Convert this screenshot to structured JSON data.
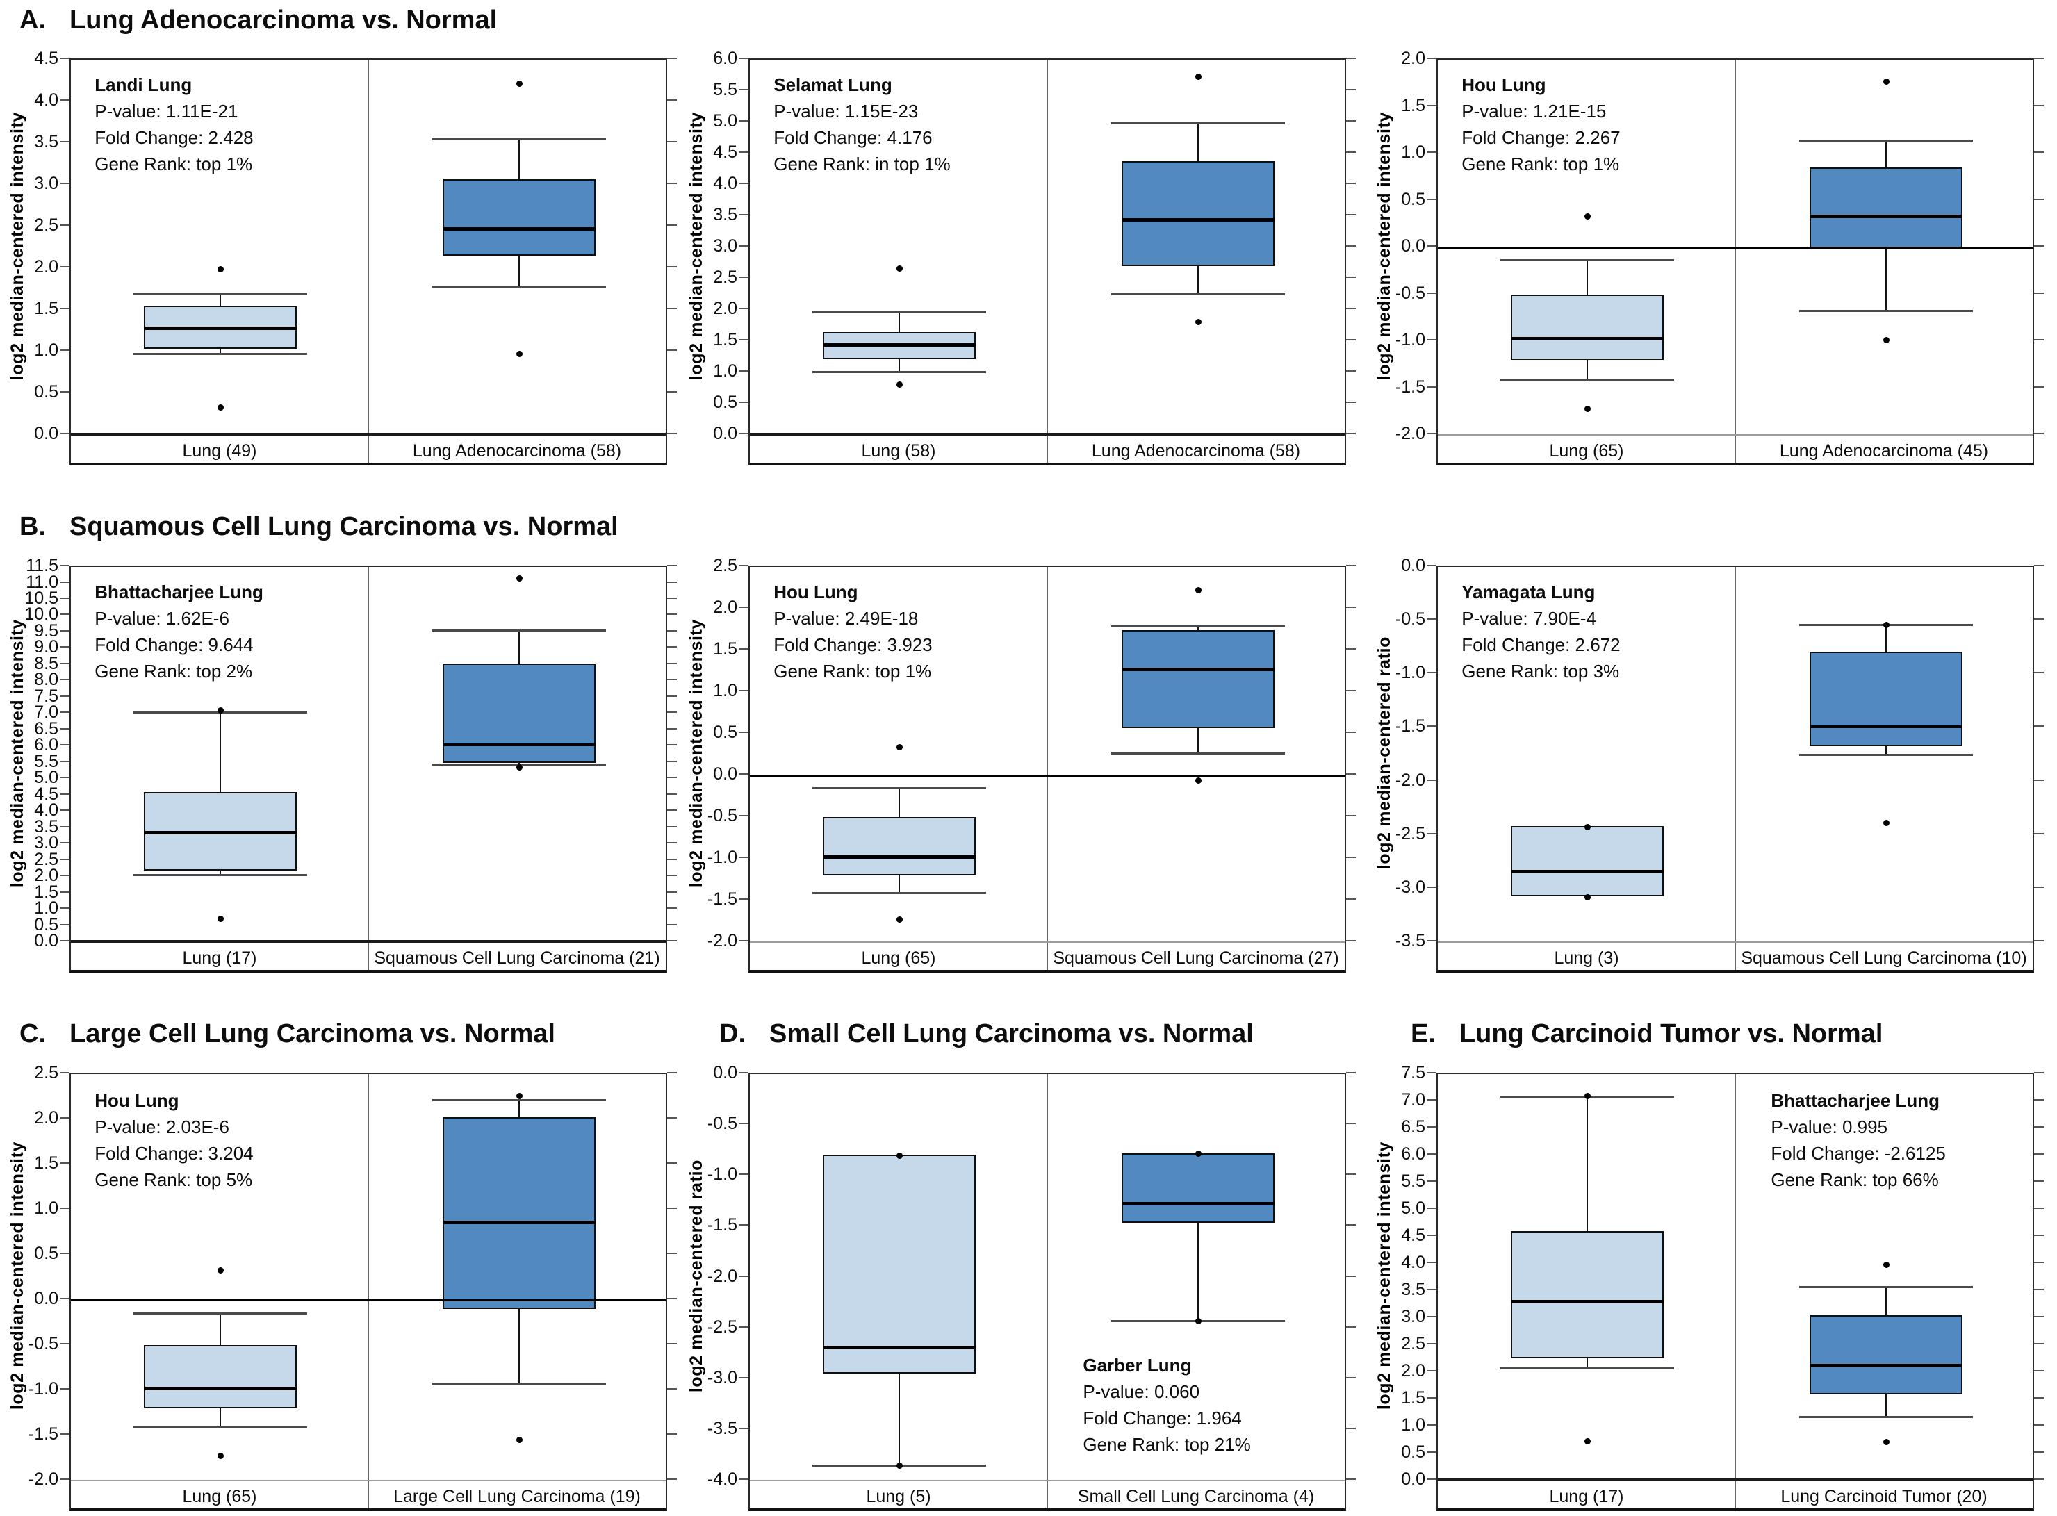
{
  "figure": {
    "sections": [
      {
        "letter": "A.",
        "title": "Lung Adenocarcinoma vs. Normal"
      },
      {
        "letter": "B.",
        "title": "Squamous Cell Lung Carcinoma vs. Normal"
      },
      {
        "letter": "C.",
        "title": "Large Cell Lung Carcinoma vs. Normal"
      },
      {
        "letter": "D.",
        "title": "Small Cell Lung Carcinoma vs. Normal"
      },
      {
        "letter": "E.",
        "title": "Lung Carcinoid Tumor vs. Normal"
      }
    ]
  },
  "colors": {
    "normal_box": "#c6d9ea",
    "tumor_box": "#5289c0",
    "box_border": "#101010",
    "median_line": "#000000",
    "whisker": "#141414",
    "cap": "#4a4a4a",
    "zero_line": "#000000",
    "baseline_gray": "#9c9c9c",
    "baseline_dark": "#1b1b1b",
    "divider": "#666666",
    "tick": "#555555"
  },
  "chart_data": [
    {
      "id": "a1",
      "type": "box",
      "section": "A",
      "grid": {
        "row": 0,
        "col": 0
      },
      "study": "Landi Lung",
      "p_value": "P-value: 1.11E-21",
      "fold_change": "Fold Change: 2.428",
      "gene_rank": "Gene Rank: top 1%",
      "stats_pos": "top-left",
      "ylabel": "log2 median-centered intensity",
      "axis": {
        "ymin": 0.0,
        "ymax": 4.5,
        "step": 0.5
      },
      "zero_line": false,
      "baseline_dark": true,
      "categories": [
        "Lung (49)",
        "Lung Adenocarcinoma (58)"
      ],
      "series": [
        {
          "name": "Lung (49)",
          "role": "normal",
          "q1": 1.03,
          "median": 1.28,
          "q3": 1.55,
          "whisker_low": 0.97,
          "whisker_high": 1.7,
          "outliers": [
            1.99,
            0.33
          ]
        },
        {
          "name": "Lung Adenocarcinoma (58)",
          "role": "tumor",
          "q1": 2.15,
          "median": 2.47,
          "q3": 3.07,
          "whisker_low": 1.78,
          "whisker_high": 3.55,
          "outliers": [
            4.21,
            0.97
          ]
        }
      ]
    },
    {
      "id": "a2",
      "type": "box",
      "section": "A",
      "grid": {
        "row": 0,
        "col": 1
      },
      "study": "Selamat Lung",
      "p_value": "P-value: 1.15E-23",
      "fold_change": "Fold Change: 4.176",
      "gene_rank": "Gene Rank: in top 1%",
      "stats_pos": "top-left",
      "ylabel": "log2 median-centered intensity",
      "axis": {
        "ymin": 0.0,
        "ymax": 6.0,
        "step": 0.5
      },
      "zero_line": false,
      "baseline_dark": true,
      "categories": [
        "Lung (58)",
        "Lung Adenocarcinoma (58)"
      ],
      "series": [
        {
          "name": "Lung (58)",
          "role": "normal",
          "q1": 1.21,
          "median": 1.44,
          "q3": 1.64,
          "whisker_low": 1.01,
          "whisker_high": 1.96,
          "outliers": [
            2.66,
            0.81
          ]
        },
        {
          "name": "Lung Adenocarcinoma (58)",
          "role": "tumor",
          "q1": 2.7,
          "median": 3.44,
          "q3": 4.38,
          "whisker_low": 2.25,
          "whisker_high": 4.98,
          "outliers": [
            5.73,
            1.81
          ]
        }
      ]
    },
    {
      "id": "a3",
      "type": "box",
      "section": "A",
      "grid": {
        "row": 0,
        "col": 2
      },
      "study": "Hou Lung",
      "p_value": "P-value: 1.21E-15",
      "fold_change": "Fold Change: 2.267",
      "gene_rank": "Gene Rank: top 1%",
      "stats_pos": "top-left",
      "ylabel": "log2 median-centered intensity",
      "axis": {
        "ymin": -2.0,
        "ymax": 2.0,
        "step": 0.5
      },
      "zero_line": true,
      "baseline_dark": false,
      "categories": [
        "Lung (65)",
        "Lung Adenocarcinoma (45)"
      ],
      "series": [
        {
          "name": "Lung (65)",
          "role": "normal",
          "q1": -1.2,
          "median": -0.97,
          "q3": -0.5,
          "whisker_low": -1.41,
          "whisker_high": -0.14,
          "outliers": [
            0.33,
            -1.72
          ]
        },
        {
          "name": "Lung Adenocarcinoma (45)",
          "role": "tumor",
          "q1": -0.01,
          "median": 0.33,
          "q3": 0.85,
          "whisker_low": -0.68,
          "whisker_high": 1.14,
          "outliers": [
            1.77,
            -0.99
          ]
        }
      ]
    },
    {
      "id": "b1",
      "type": "box",
      "section": "B",
      "grid": {
        "row": 1,
        "col": 0
      },
      "study": "Bhattacharjee Lung",
      "p_value": "P-value: 1.62E-6",
      "fold_change": "Fold Change: 9.644",
      "gene_rank": "Gene Rank: top 2%",
      "stats_pos": "top-left",
      "ylabel": "log2 median-centered intensity",
      "axis": {
        "ymin": 0.0,
        "ymax": 11.5,
        "step": 0.5
      },
      "zero_line": false,
      "baseline_dark": true,
      "categories": [
        "Lung (17)",
        "Squamous Cell Lung Carcinoma (21)"
      ],
      "series": [
        {
          "name": "Lung (17)",
          "role": "normal",
          "q1": 2.2,
          "median": 3.35,
          "q3": 4.6,
          "whisker_low": 2.05,
          "whisker_high": 7.05,
          "outliers": [
            7.1,
            0.72
          ]
        },
        {
          "name": "Squamous Cell Lung Carcinoma (21)",
          "role": "tumor",
          "q1": 5.5,
          "median": 6.05,
          "q3": 8.55,
          "whisker_low": 5.45,
          "whisker_high": 9.55,
          "outliers": [
            11.15,
            5.35
          ]
        }
      ]
    },
    {
      "id": "b2",
      "type": "box",
      "section": "B",
      "grid": {
        "row": 1,
        "col": 1
      },
      "study": "Hou Lung",
      "p_value": "P-value: 2.49E-18",
      "fold_change": "Fold Change: 3.923",
      "gene_rank": "Gene Rank: top 1%",
      "stats_pos": "top-left",
      "ylabel": "log2 median-centered intensity",
      "axis": {
        "ymin": -2.0,
        "ymax": 2.5,
        "step": 0.5
      },
      "zero_line": true,
      "baseline_dark": false,
      "categories": [
        "Lung (65)",
        "Squamous Cell Lung Carcinoma (27)"
      ],
      "series": [
        {
          "name": "Lung (65)",
          "role": "normal",
          "q1": -1.2,
          "median": -0.98,
          "q3": -0.5,
          "whisker_low": -1.41,
          "whisker_high": -0.15,
          "outliers": [
            0.34,
            -1.73
          ]
        },
        {
          "name": "Squamous Cell Lung Carcinoma (27)",
          "role": "tumor",
          "q1": 0.57,
          "median": 1.27,
          "q3": 1.74,
          "whisker_low": 0.26,
          "whisker_high": 1.8,
          "outliers": [
            2.22,
            -0.06
          ]
        }
      ]
    },
    {
      "id": "b3",
      "type": "box",
      "section": "B",
      "grid": {
        "row": 1,
        "col": 2
      },
      "study": "Yamagata Lung",
      "p_value": "P-value: 7.90E-4",
      "fold_change": "Fold Change: 2.672",
      "gene_rank": "Gene Rank: top 3%",
      "stats_pos": "top-left",
      "ylabel": "log2 median-centered ratio",
      "axis": {
        "ymin": -3.5,
        "ymax": 0.0,
        "step": 0.5
      },
      "zero_line": false,
      "baseline_dark": false,
      "categories": [
        "Lung (3)",
        "Squamous Cell Lung Carcinoma (10)"
      ],
      "series": [
        {
          "name": "Lung (3)",
          "role": "normal",
          "q1": -3.07,
          "median": -2.84,
          "q3": -2.42,
          "whisker_low": -3.07,
          "whisker_high": -2.42,
          "outliers": [
            -2.43,
            -3.08
          ]
        },
        {
          "name": "Squamous Cell Lung Carcinoma (10)",
          "role": "tumor",
          "q1": -1.67,
          "median": -1.49,
          "q3": -0.79,
          "whisker_low": -1.75,
          "whisker_high": -0.54,
          "outliers": [
            -0.54,
            -2.39
          ]
        }
      ]
    },
    {
      "id": "c",
      "type": "box",
      "section": "C",
      "grid": {
        "row": 2,
        "col": 0
      },
      "study": "Hou Lung",
      "p_value": "P-value: 2.03E-6",
      "fold_change": "Fold Change: 3.204",
      "gene_rank": "Gene Rank: top 5%",
      "stats_pos": "top-left",
      "ylabel": "log2 median-centered intensity",
      "axis": {
        "ymin": -2.0,
        "ymax": 2.5,
        "step": 0.5
      },
      "zero_line": true,
      "baseline_dark": false,
      "categories": [
        "Lung (65)",
        "Large Cell Lung Carcinoma (19)"
      ],
      "series": [
        {
          "name": "Lung (65)",
          "role": "normal",
          "q1": -1.2,
          "median": -0.98,
          "q3": -0.5,
          "whisker_low": -1.41,
          "whisker_high": -0.15,
          "outliers": [
            0.33,
            -1.73
          ]
        },
        {
          "name": "Large Cell Lung Carcinoma (19)",
          "role": "tumor",
          "q1": -0.1,
          "median": 0.86,
          "q3": 2.02,
          "whisker_low": -0.93,
          "whisker_high": 2.21,
          "outliers": [
            2.26,
            -1.55
          ]
        }
      ]
    },
    {
      "id": "d",
      "type": "box",
      "section": "D",
      "grid": {
        "row": 2,
        "col": 1
      },
      "study": "Garber Lung",
      "p_value": "P-value: 0.060",
      "fold_change": "Fold Change: 1.964",
      "gene_rank": "Gene Rank: top 21%",
      "stats_pos": "bottom-right",
      "ylabel": "log2 median-centered ratio",
      "axis": {
        "ymin": -4.0,
        "ymax": 0.0,
        "step": 0.5
      },
      "zero_line": false,
      "baseline_dark": false,
      "categories": [
        "Lung (5)",
        "Small Cell Lung Carcinoma (4)"
      ],
      "series": [
        {
          "name": "Lung (5)",
          "role": "normal",
          "q1": -2.95,
          "median": -2.69,
          "q3": -0.79,
          "whisker_low": -3.85,
          "whisker_high": -0.79,
          "outliers": [
            -0.8,
            -3.85
          ]
        },
        {
          "name": "Small Cell Lung Carcinoma (4)",
          "role": "tumor",
          "q1": -1.46,
          "median": -1.27,
          "q3": -0.78,
          "whisker_low": -2.43,
          "whisker_high": -0.78,
          "outliers": [
            -0.78,
            -2.43
          ]
        }
      ]
    },
    {
      "id": "e",
      "type": "box",
      "section": "E",
      "grid": {
        "row": 2,
        "col": 2
      },
      "study": "Bhattacharjee Lung",
      "p_value": "P-value: 0.995",
      "fold_change": "Fold Change: -2.6125",
      "gene_rank": "Gene Rank: top 66%",
      "stats_pos": "top-right",
      "ylabel": "log2 median-centered intensity",
      "axis": {
        "ymin": 0.0,
        "ymax": 7.5,
        "step": 0.5
      },
      "zero_line": false,
      "baseline_dark": true,
      "categories": [
        "Lung (17)",
        "Lung Carcinoid Tumor (20)"
      ],
      "series": [
        {
          "name": "Lung (17)",
          "role": "normal",
          "q1": 2.25,
          "median": 3.3,
          "q3": 4.6,
          "whisker_low": 2.07,
          "whisker_high": 7.07,
          "outliers": [
            7.1,
            0.73
          ]
        },
        {
          "name": "Lung Carcinoid Tumor (20)",
          "role": "tumor",
          "q1": 1.59,
          "median": 2.12,
          "q3": 3.05,
          "whisker_low": 1.18,
          "whisker_high": 3.57,
          "outliers": [
            3.98,
            0.71
          ]
        }
      ]
    }
  ]
}
